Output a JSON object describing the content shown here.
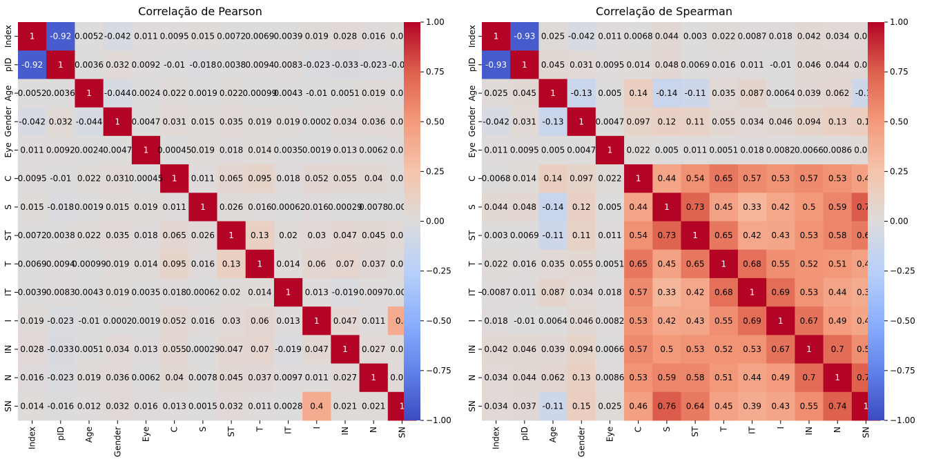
{
  "chart_data": [
    {
      "type": "heatmap",
      "title": "Correlação de Pearson",
      "labels": [
        "Index",
        "pID",
        "Age",
        "Gender",
        "Eye",
        "C",
        "S",
        "ST",
        "T",
        "IT",
        "I",
        "IN",
        "N",
        "SN"
      ],
      "value_range": [
        -1.0,
        1.0
      ],
      "colormap": "coolwarm",
      "colorbar_ticks": [
        "1.00",
        "0.75",
        "0.50",
        "0.25",
        "0.00",
        "−0.25",
        "−0.50",
        "−0.75",
        "−1.00"
      ],
      "values": [
        [
          1,
          -0.92,
          0.0052,
          -0.042,
          0.011,
          0.0095,
          0.015,
          0.0072,
          0.0069,
          0.0039,
          0.019,
          0.028,
          0.016,
          0.014
        ],
        [
          -0.92,
          1,
          0.0036,
          0.032,
          0.0092,
          -0.01,
          -0.018,
          0.0038,
          0.0094,
          0.0083,
          -0.023,
          -0.033,
          -0.023,
          -0.016
        ],
        [
          0.0052,
          0.0036,
          1,
          -0.044,
          0.0024,
          0.022,
          0.0019,
          0.022,
          0.00099,
          0.0043,
          -0.01,
          0.0051,
          0.019,
          0.012
        ],
        [
          -0.042,
          0.032,
          -0.044,
          1,
          0.0047,
          0.031,
          0.015,
          0.035,
          0.019,
          0.019,
          0.0002,
          0.034,
          0.036,
          0.032
        ],
        [
          0.011,
          0.0092,
          0.0024,
          0.0047,
          1,
          0.00045,
          0.019,
          0.018,
          0.014,
          0.0035,
          0.0019,
          0.013,
          0.0062,
          0.016
        ],
        [
          0.0095,
          -0.01,
          0.022,
          0.031,
          0.00045,
          1,
          0.011,
          0.065,
          0.095,
          0.018,
          0.052,
          0.055,
          0.04,
          0.013
        ],
        [
          0.015,
          -0.018,
          0.0019,
          0.015,
          0.019,
          0.011,
          1,
          0.026,
          0.016,
          0.00062,
          0.016,
          0.00029,
          0.0078,
          0.0015
        ],
        [
          0.0072,
          0.0038,
          0.022,
          0.035,
          0.018,
          0.065,
          0.026,
          1,
          0.13,
          0.02,
          0.03,
          0.047,
          0.045,
          0.032
        ],
        [
          0.0069,
          0.0094,
          0.00099,
          0.019,
          0.014,
          0.095,
          0.016,
          0.13,
          1,
          0.014,
          0.06,
          0.07,
          0.037,
          0.011
        ],
        [
          0.0039,
          0.0083,
          0.0043,
          0.019,
          0.0035,
          0.018,
          0.00062,
          0.02,
          0.014,
          1,
          0.013,
          -0.019,
          0.0097,
          0.0028
        ],
        [
          0.019,
          -0.023,
          -0.01,
          0.0002,
          0.0019,
          0.052,
          0.016,
          0.03,
          0.06,
          0.013,
          1,
          0.047,
          0.011,
          0.4
        ],
        [
          0.028,
          -0.033,
          0.0051,
          0.034,
          0.013,
          0.055,
          0.00029,
          0.047,
          0.07,
          -0.019,
          0.047,
          1,
          0.027,
          0.021
        ],
        [
          0.016,
          -0.023,
          0.019,
          0.036,
          0.0062,
          0.04,
          0.0078,
          0.045,
          0.037,
          0.0097,
          0.011,
          0.027,
          1,
          0.021
        ],
        [
          0.014,
          -0.016,
          0.012,
          0.032,
          0.016,
          0.013,
          0.0015,
          0.032,
          0.011,
          0.0028,
          0.4,
          0.021,
          0.021,
          1
        ]
      ]
    },
    {
      "type": "heatmap",
      "title": "Correlação de Spearman",
      "labels": [
        "Index",
        "pID",
        "Age",
        "Gender",
        "Eye",
        "C",
        "S",
        "ST",
        "T",
        "IT",
        "I",
        "IN",
        "N",
        "SN"
      ],
      "value_range": [
        -1.0,
        1.0
      ],
      "colormap": "coolwarm",
      "colorbar_ticks": [
        "1.00",
        "0.75",
        "0.50",
        "0.25",
        "0.00",
        "−0.25",
        "−0.50",
        "−0.75",
        "−1.00"
      ],
      "values": [
        [
          1,
          -0.93,
          0.025,
          -0.042,
          0.011,
          0.0068,
          0.044,
          0.003,
          0.022,
          0.0087,
          0.018,
          0.042,
          0.034,
          0.034
        ],
        [
          -0.93,
          1,
          0.045,
          0.031,
          0.0095,
          0.014,
          0.048,
          0.0069,
          0.016,
          0.011,
          -0.01,
          0.046,
          0.044,
          0.037
        ],
        [
          0.025,
          0.045,
          1,
          -0.13,
          0.005,
          0.14,
          -0.14,
          -0.11,
          0.035,
          0.087,
          0.0064,
          0.039,
          0.062,
          -0.11
        ],
        [
          -0.042,
          0.031,
          -0.13,
          1,
          0.0047,
          0.097,
          0.12,
          0.11,
          0.055,
          0.034,
          0.046,
          0.094,
          0.13,
          0.15
        ],
        [
          0.011,
          0.0095,
          0.005,
          0.0047,
          1,
          0.022,
          0.005,
          0.011,
          0.0051,
          0.018,
          0.0082,
          0.0066,
          0.0086,
          0.025
        ],
        [
          0.0068,
          0.014,
          0.14,
          0.097,
          0.022,
          1,
          0.44,
          0.54,
          0.65,
          0.57,
          0.53,
          0.57,
          0.53,
          0.46
        ],
        [
          0.044,
          0.048,
          -0.14,
          0.12,
          0.005,
          0.44,
          1,
          0.73,
          0.45,
          0.33,
          0.42,
          0.5,
          0.59,
          0.76
        ],
        [
          0.003,
          0.0069,
          -0.11,
          0.11,
          0.011,
          0.54,
          0.73,
          1,
          0.65,
          0.42,
          0.43,
          0.53,
          0.58,
          0.64
        ],
        [
          0.022,
          0.016,
          0.035,
          0.055,
          0.0051,
          0.65,
          0.45,
          0.65,
          1,
          0.68,
          0.55,
          0.52,
          0.51,
          0.45
        ],
        [
          0.0087,
          0.011,
          0.087,
          0.034,
          0.018,
          0.57,
          0.33,
          0.42,
          0.68,
          1,
          0.69,
          0.53,
          0.44,
          0.39
        ],
        [
          0.018,
          -0.01,
          0.0064,
          0.046,
          0.0082,
          0.53,
          0.42,
          0.43,
          0.55,
          0.69,
          1,
          0.67,
          0.49,
          0.43
        ],
        [
          0.042,
          0.046,
          0.039,
          0.094,
          0.0066,
          0.57,
          0.5,
          0.53,
          0.52,
          0.53,
          0.67,
          1,
          0.7,
          0.55
        ],
        [
          0.034,
          0.044,
          0.062,
          0.13,
          0.0086,
          0.53,
          0.59,
          0.58,
          0.51,
          0.44,
          0.49,
          0.7,
          1,
          0.74
        ],
        [
          0.034,
          0.037,
          -0.11,
          0.15,
          0.025,
          0.46,
          0.76,
          0.64,
          0.45,
          0.39,
          0.43,
          0.55,
          0.74,
          1
        ]
      ]
    }
  ]
}
